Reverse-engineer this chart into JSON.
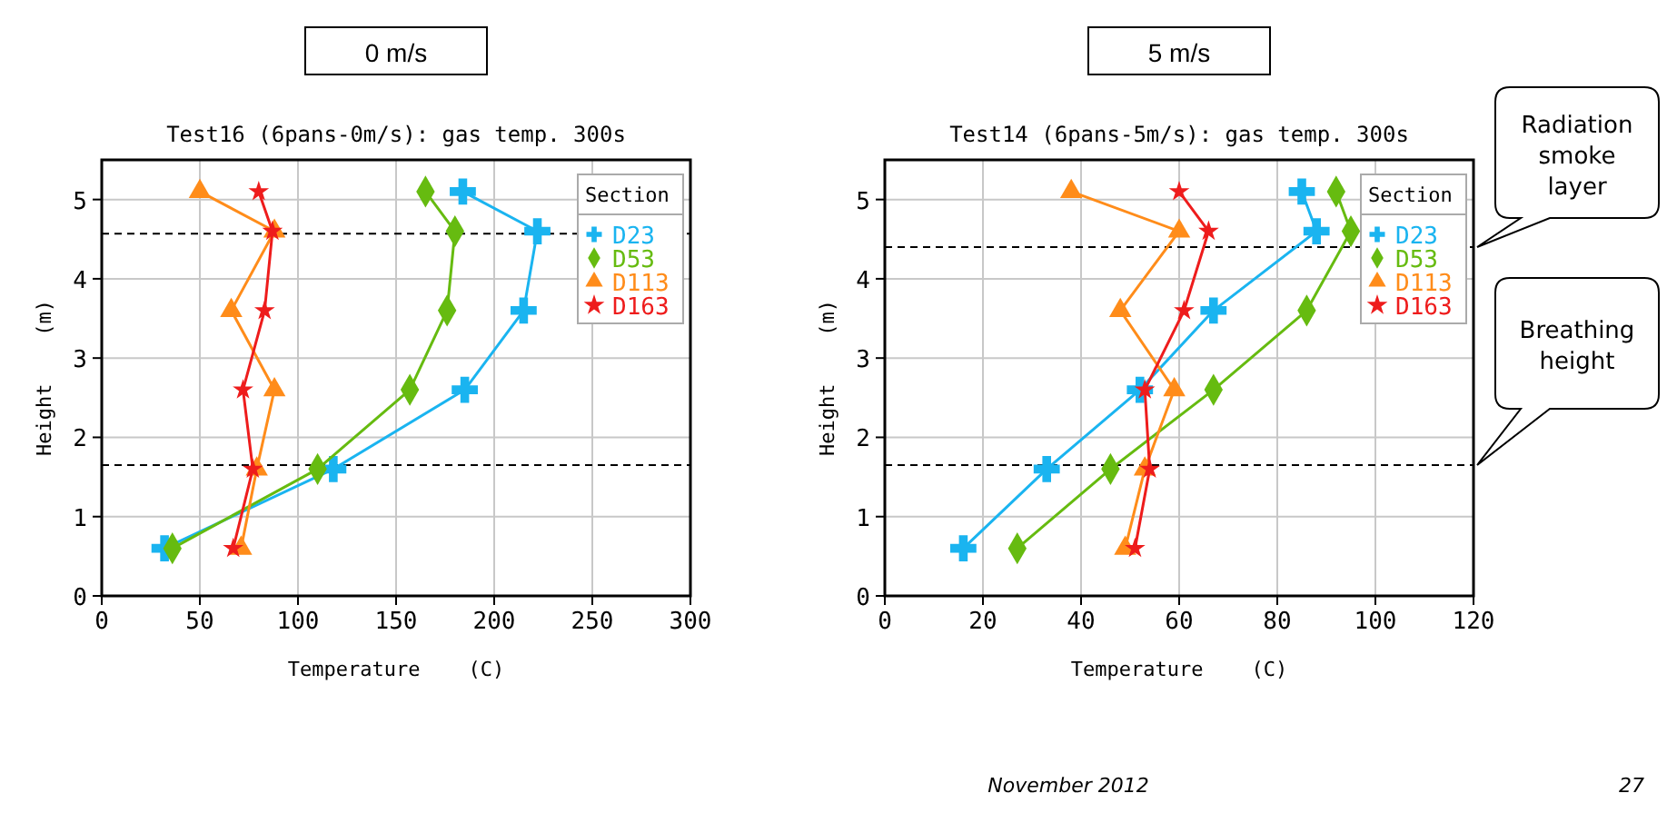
{
  "chart_data": [
    {
      "type": "line",
      "subtitle": "0 m/s",
      "title": "Test16 (6pans-0m/s): gas temp. 300s",
      "xlabel": "Temperature    (C)",
      "ylabel": "Height    (m)",
      "xlim": [
        0,
        300
      ],
      "xticks": [
        0,
        50,
        100,
        150,
        200,
        250,
        300
      ],
      "ylim": [
        0,
        5.5
      ],
      "yticks": [
        0,
        1,
        2,
        3,
        4,
        5
      ],
      "grid": true,
      "legend": "top right",
      "legend_title": "Section",
      "ref_lines": [
        {
          "axis": "y",
          "value": 4.57,
          "line_style": "dashed"
        },
        {
          "axis": "y",
          "value": 1.65,
          "line_style": "dashed"
        }
      ],
      "series": [
        {
          "name": "D23",
          "color": "#1ab4f0",
          "marker": "cross",
          "x": [
            32,
            118,
            185,
            215,
            222,
            184
          ],
          "values": [
            0.6,
            1.6,
            2.6,
            3.6,
            4.6,
            5.1
          ]
        },
        {
          "name": "D53",
          "color": "#66bb10",
          "marker": "diamond",
          "x": [
            36,
            110,
            157,
            176,
            180,
            165
          ],
          "values": [
            0.6,
            1.6,
            2.6,
            3.6,
            4.6,
            5.1
          ]
        },
        {
          "name": "D113",
          "color": "#ff8c1a",
          "marker": "triangle",
          "x": [
            71,
            79,
            88,
            66,
            88,
            50
          ],
          "values": [
            0.6,
            1.6,
            2.6,
            3.6,
            4.6,
            5.1
          ]
        },
        {
          "name": "D163",
          "color": "#ee1c1c",
          "marker": "star",
          "x": [
            67,
            77,
            72,
            83,
            87,
            80
          ],
          "values": [
            0.6,
            1.6,
            2.6,
            3.6,
            4.6,
            5.1
          ]
        }
      ]
    },
    {
      "type": "line",
      "subtitle": "5 m/s",
      "title": "Test14 (6pans-5m/s): gas temp. 300s",
      "xlabel": "Temperature    (C)",
      "ylabel": "Height    (m)",
      "xlim": [
        0,
        120
      ],
      "xticks": [
        0,
        20,
        40,
        60,
        80,
        100,
        120
      ],
      "ylim": [
        0,
        5.5
      ],
      "yticks": [
        0,
        1,
        2,
        3,
        4,
        5
      ],
      "grid": true,
      "legend": "top right",
      "legend_title": "Section",
      "ref_lines": [
        {
          "axis": "y",
          "value": 4.4,
          "line_style": "dashed",
          "label": "Radiation smoke layer"
        },
        {
          "axis": "y",
          "value": 1.65,
          "line_style": "dashed",
          "label": "Breathing height"
        }
      ],
      "annotations": [
        "November 2012",
        "27"
      ],
      "series": [
        {
          "name": "D23",
          "color": "#1ab4f0",
          "marker": "cross",
          "x": [
            16,
            33,
            52,
            67,
            88,
            85
          ],
          "values": [
            0.6,
            1.6,
            2.6,
            3.6,
            4.6,
            5.1
          ]
        },
        {
          "name": "D53",
          "color": "#66bb10",
          "marker": "diamond",
          "x": [
            27,
            46,
            67,
            86,
            95,
            92
          ],
          "values": [
            0.6,
            1.6,
            2.6,
            3.6,
            4.6,
            5.1
          ]
        },
        {
          "name": "D113",
          "color": "#ff8c1a",
          "marker": "triangle",
          "x": [
            49,
            53,
            59,
            48,
            60,
            38
          ],
          "values": [
            0.6,
            1.6,
            2.6,
            3.6,
            4.6,
            5.1
          ]
        },
        {
          "name": "D163",
          "color": "#ee1c1c",
          "marker": "star",
          "x": [
            51,
            54,
            53,
            61,
            66,
            60
          ],
          "values": [
            0.6,
            1.6,
            2.6,
            3.6,
            4.6,
            5.1
          ]
        }
      ]
    }
  ]
}
